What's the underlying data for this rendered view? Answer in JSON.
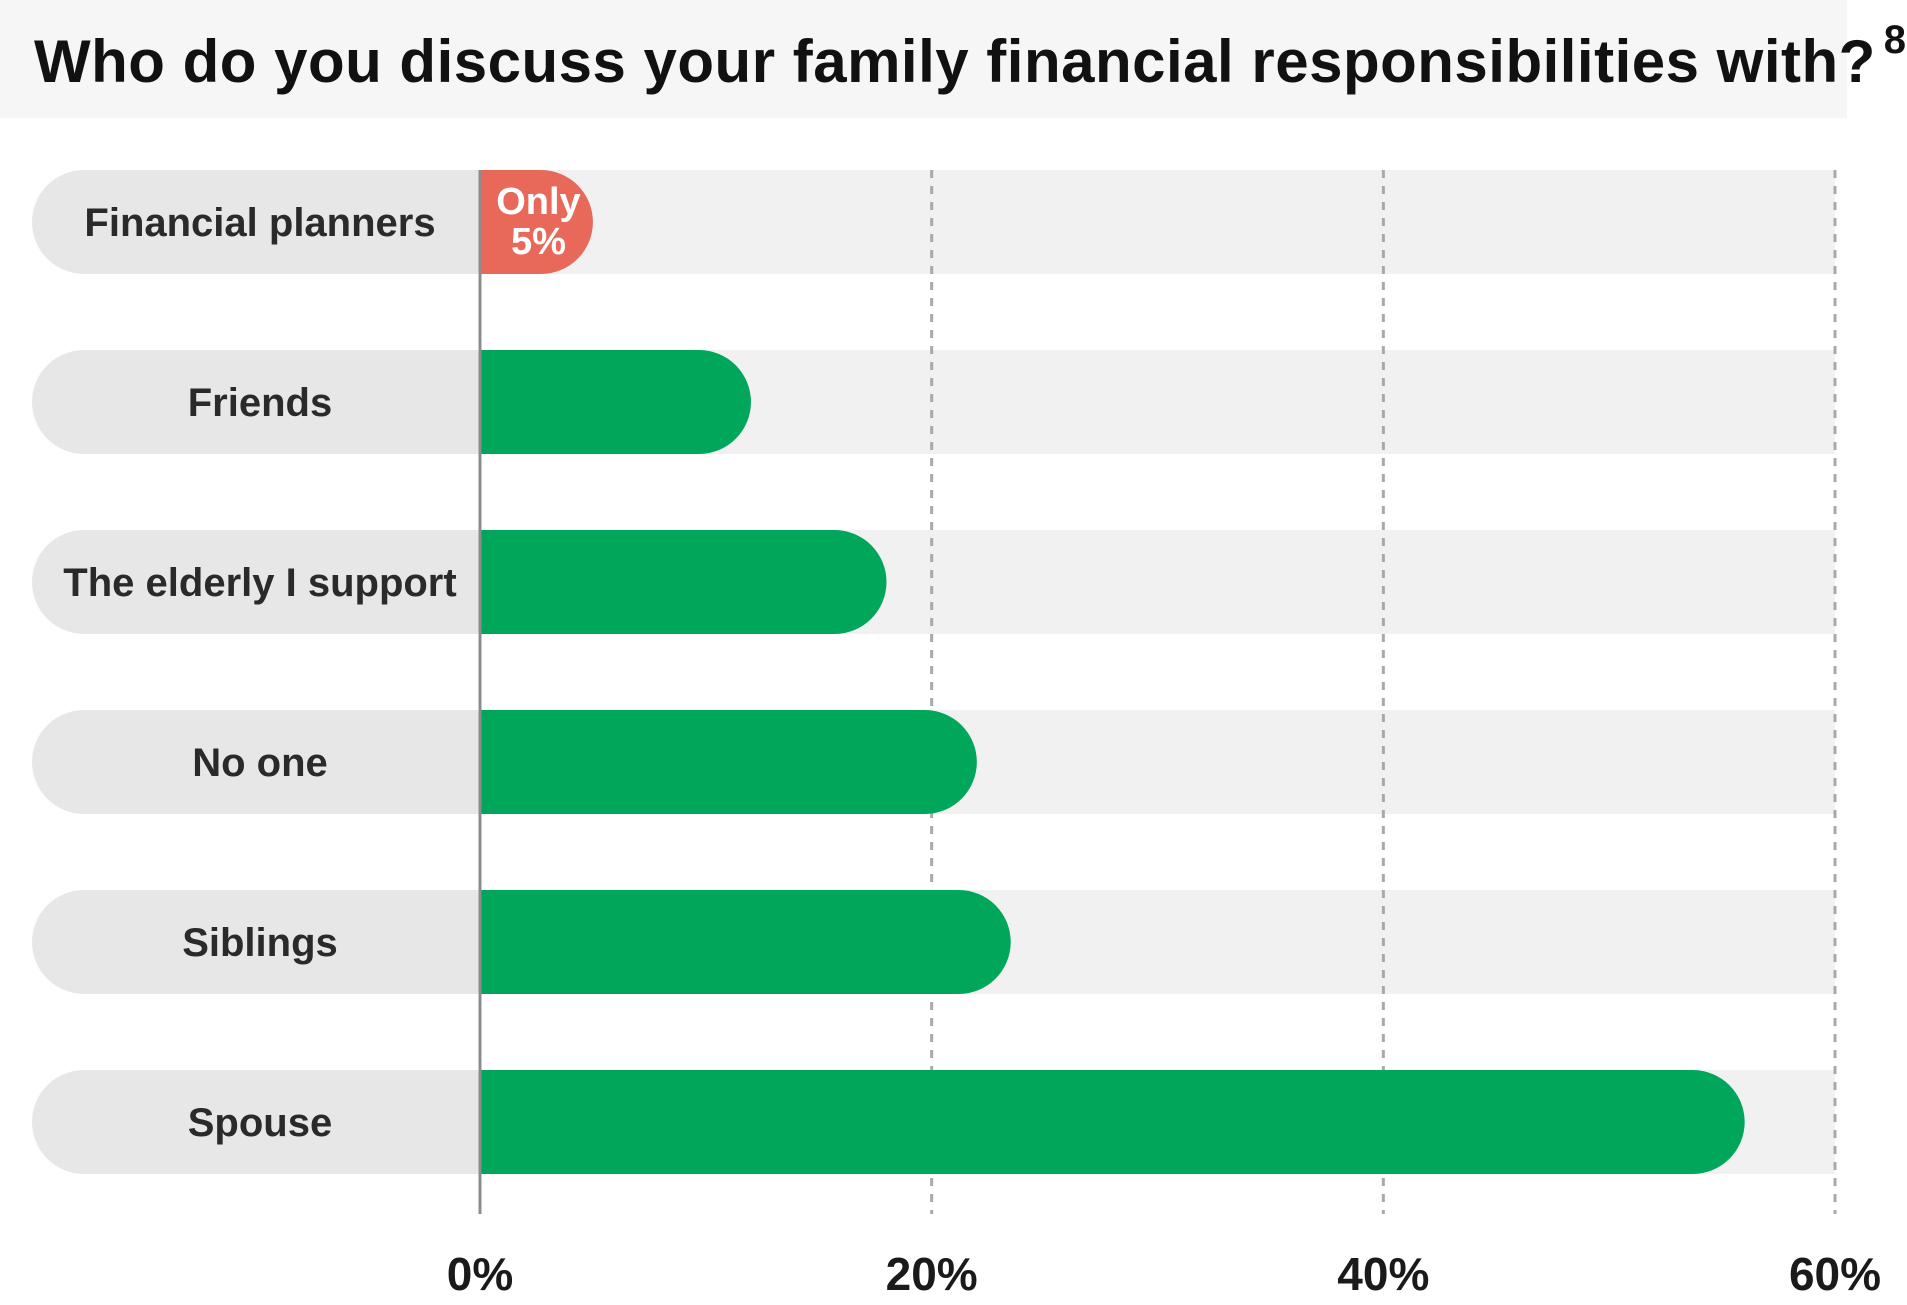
{
  "header": {
    "title": "Who do you discuss your family financial responsibilities with?",
    "footnote": "8"
  },
  "colors": {
    "bar": "#00a65a",
    "highlight": "#e8685a",
    "track": "#f0f1f0",
    "label_pill": "#e7e7e8",
    "grid": "#a9a9a9"
  },
  "chart_data": {
    "type": "bar",
    "orientation": "horizontal",
    "categories": [
      "Financial planners",
      "Friends",
      "The elderly I support",
      "No one",
      "Siblings",
      "Spouse"
    ],
    "values": [
      5,
      12,
      18,
      22,
      23.5,
      56
    ],
    "highlight_index": 0,
    "annotations": [
      {
        "category": "Financial planners",
        "lines": [
          "Only",
          "5%"
        ]
      }
    ],
    "xlim": [
      0,
      60
    ],
    "xticks": [
      0,
      20,
      40,
      60
    ],
    "xtick_labels": [
      "0%",
      "20%",
      "40%",
      "60%"
    ],
    "grid": true,
    "grid_style": "dashed",
    "legend": "none"
  }
}
